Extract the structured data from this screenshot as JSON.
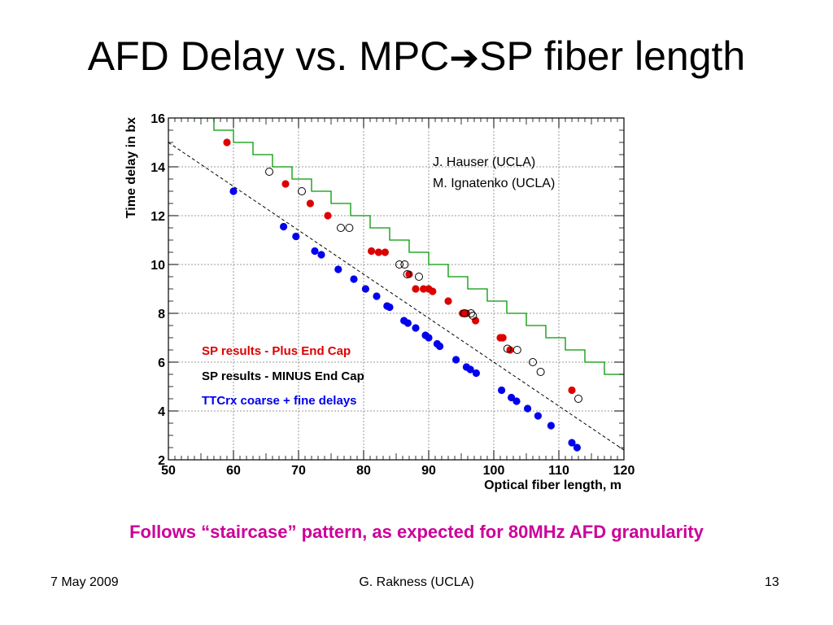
{
  "slide": {
    "title_main": "AFD Delay vs. MPC",
    "title_arrow": "➔",
    "title_end": "SP fiber length",
    "conclusion": "Follows “staircase” pattern, as expected for 80MHz AFD granularity",
    "footer_date": "7 May 2009",
    "footer_author": "G. Rakness (UCLA)",
    "footer_page": "13"
  },
  "chart_data": {
    "type": "scatter",
    "xlabel": "Optical fiber length, m",
    "ylabel": "Time delay in bx",
    "xlim": [
      50,
      120
    ],
    "ylim": [
      2,
      16
    ],
    "x_ticks": [
      50,
      60,
      70,
      80,
      90,
      100,
      110,
      120
    ],
    "y_ticks": [
      2,
      4,
      6,
      8,
      10,
      12,
      14,
      16
    ],
    "grid": true,
    "credits": [
      "J. Hauser (UCLA)",
      "M. Ignatenko (UCLA)"
    ],
    "legend_position": "lower-left",
    "series": [
      {
        "name": "SP results - Plus End Cap",
        "color": "#dd0000",
        "marker": "filled-circle",
        "points": [
          [
            59,
            15
          ],
          [
            68,
            13.3
          ],
          [
            71.8,
            12.5
          ],
          [
            74.5,
            12
          ],
          [
            81.2,
            10.55
          ],
          [
            82.3,
            10.5
          ],
          [
            83.3,
            10.5
          ],
          [
            87,
            9.6
          ],
          [
            88,
            9
          ],
          [
            89.2,
            9
          ],
          [
            90,
            9
          ],
          [
            90.6,
            8.9
          ],
          [
            93,
            8.5
          ],
          [
            95.2,
            8
          ],
          [
            95.8,
            8
          ],
          [
            97.2,
            7.7
          ],
          [
            101,
            7
          ],
          [
            101.4,
            7
          ],
          [
            102.5,
            6.5
          ],
          [
            112,
            4.85
          ]
        ]
      },
      {
        "name": "SP results - MINUS End Cap",
        "color": "#000000",
        "marker": "open-circle",
        "points": [
          [
            65.5,
            13.8
          ],
          [
            70.5,
            13
          ],
          [
            76.5,
            11.5
          ],
          [
            77.8,
            11.5
          ],
          [
            85.5,
            10
          ],
          [
            86.3,
            10
          ],
          [
            86.7,
            9.6
          ],
          [
            88.5,
            9.5
          ],
          [
            95.5,
            8
          ],
          [
            96.5,
            8
          ],
          [
            96.8,
            7.9
          ],
          [
            102.1,
            6.55
          ],
          [
            103.6,
            6.5
          ],
          [
            106,
            6
          ],
          [
            107.2,
            5.6
          ],
          [
            113,
            4.5
          ]
        ]
      },
      {
        "name": "TTCrx coarse + fine delays",
        "color": "#0000ee",
        "marker": "filled-circle",
        "points": [
          [
            60,
            13
          ],
          [
            67.7,
            11.55
          ],
          [
            69.6,
            11.15
          ],
          [
            72.5,
            10.55
          ],
          [
            73.5,
            10.4
          ],
          [
            76.1,
            9.8
          ],
          [
            78.5,
            9.4
          ],
          [
            80.3,
            9
          ],
          [
            82,
            8.7
          ],
          [
            83.6,
            8.3
          ],
          [
            84,
            8.25
          ],
          [
            86.2,
            7.7
          ],
          [
            86.8,
            7.6
          ],
          [
            88,
            7.4
          ],
          [
            89.5,
            7.1
          ],
          [
            90,
            7
          ],
          [
            91.3,
            6.75
          ],
          [
            91.7,
            6.65
          ],
          [
            94.2,
            6.1
          ],
          [
            95.8,
            5.8
          ],
          [
            96.4,
            5.7
          ],
          [
            97.3,
            5.55
          ],
          [
            101.2,
            4.85
          ],
          [
            102.7,
            4.55
          ],
          [
            103.5,
            4.4
          ],
          [
            105.2,
            4.1
          ],
          [
            106.8,
            3.8
          ],
          [
            108.8,
            3.4
          ],
          [
            112,
            2.7
          ],
          [
            112.8,
            2.5
          ]
        ]
      }
    ],
    "fit_line": {
      "x": [
        50,
        120
      ],
      "y": [
        15,
        2.4
      ],
      "style": "dashed"
    },
    "step_line": {
      "color": "#009900",
      "points": [
        [
          54,
          16
        ],
        [
          57,
          16
        ],
        [
          57,
          15.5
        ],
        [
          60,
          15.5
        ],
        [
          60,
          15
        ],
        [
          63,
          15
        ],
        [
          63,
          14.5
        ],
        [
          66,
          14.5
        ],
        [
          66,
          14
        ],
        [
          69,
          14
        ],
        [
          69,
          13.5
        ],
        [
          72,
          13.5
        ],
        [
          72,
          13
        ],
        [
          75,
          13
        ],
        [
          75,
          12.5
        ],
        [
          78,
          12.5
        ],
        [
          78,
          12
        ],
        [
          81,
          12
        ],
        [
          81,
          11.5
        ],
        [
          84,
          11.5
        ],
        [
          84,
          11
        ],
        [
          87,
          11
        ],
        [
          87,
          10.5
        ],
        [
          90,
          10.5
        ],
        [
          90,
          10
        ],
        [
          93,
          10
        ],
        [
          93,
          9.5
        ],
        [
          96,
          9.5
        ],
        [
          96,
          9
        ],
        [
          99,
          9
        ],
        [
          99,
          8.5
        ],
        [
          102,
          8.5
        ],
        [
          102,
          8
        ],
        [
          105,
          8
        ],
        [
          105,
          7.5
        ],
        [
          108,
          7.5
        ],
        [
          108,
          7
        ],
        [
          111,
          7
        ],
        [
          111,
          6.5
        ],
        [
          114,
          6.5
        ],
        [
          114,
          6
        ],
        [
          117,
          6
        ],
        [
          117,
          5.5
        ],
        [
          120,
          5.5
        ]
      ]
    }
  }
}
